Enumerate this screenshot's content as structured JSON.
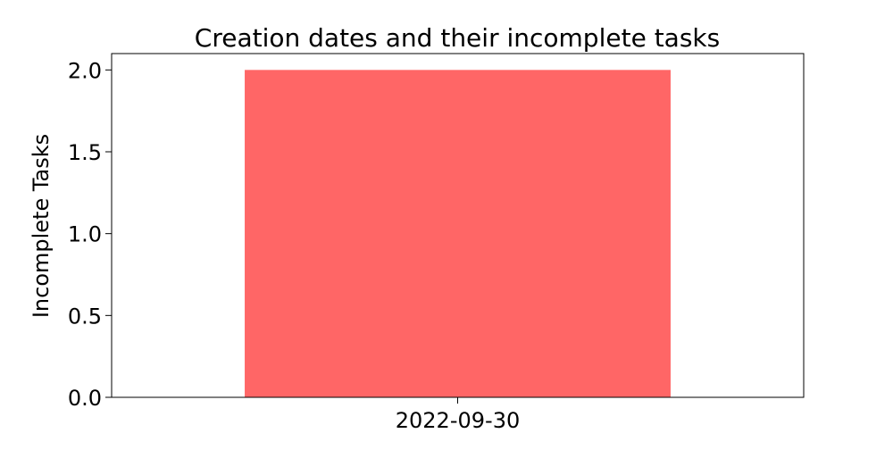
{
  "chart_data": {
    "type": "bar",
    "title": "Creation dates and their incomplete tasks",
    "xlabel": "",
    "ylabel": "Incomplete Tasks",
    "categories": [
      "2022-09-30"
    ],
    "values": [
      2
    ],
    "ylim": [
      0,
      2.1
    ],
    "yticks": [
      "0.0",
      "0.5",
      "1.0",
      "1.5",
      "2.0"
    ],
    "grid": false,
    "legend": "none",
    "colors": {
      "bar": "#ff6666",
      "axes": "#000000",
      "background": "#ffffff"
    }
  }
}
